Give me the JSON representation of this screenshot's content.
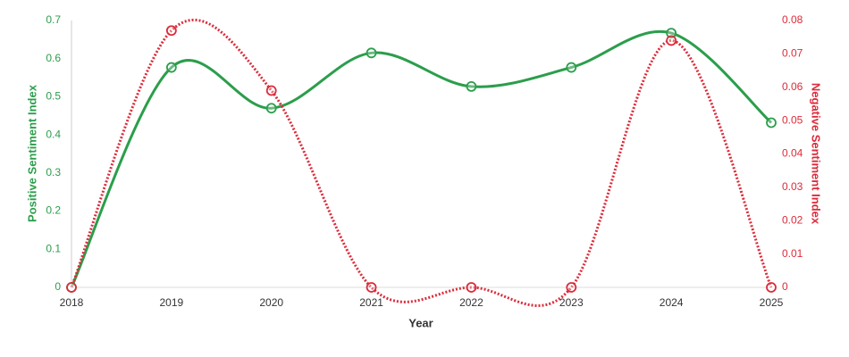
{
  "chart_data": {
    "type": "line",
    "x_label": "Year",
    "y_label": "Positive Sentiment Index",
    "y2_label": "Negative Sentiment Index",
    "categories": [
      "2018",
      "2019",
      "2020",
      "2021",
      "2022",
      "2023",
      "2024",
      "2025"
    ],
    "series": [
      {
        "name": "Positive Sentiment Index",
        "color": "#2b9e4b",
        "style": "solid",
        "values": [
          0,
          0.577,
          0.47,
          0.615,
          0.527,
          0.577,
          0.667,
          0.432
        ]
      },
      {
        "name": "Negative Sentiment Index",
        "color": "#dc2b3a",
        "style": "dotted",
        "axis": "y2",
        "values": [
          0,
          0.077,
          0.059,
          0,
          0,
          0,
          0.074,
          0
        ]
      }
    ],
    "ylim": [
      0,
      0.7
    ],
    "yticks": [
      0,
      0.1,
      0.2,
      0.3,
      0.4,
      0.5,
      0.6,
      0.7
    ],
    "y2lim": [
      0,
      0.08
    ],
    "y2ticks": [
      0,
      0.01,
      0.02,
      0.03,
      0.04,
      0.05,
      0.06,
      0.07,
      0.08
    ],
    "grid": false
  }
}
